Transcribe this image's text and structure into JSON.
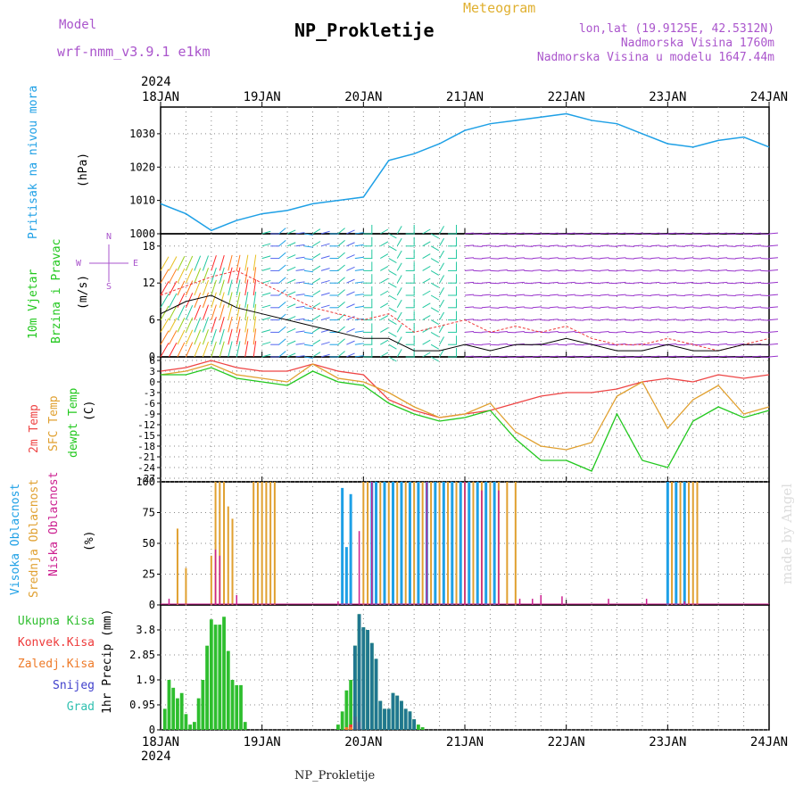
{
  "header": {
    "model_label": "Model",
    "model_name": "wrf-nmm_v3.9.1 e1km",
    "product": "Meteogram",
    "title": "NP_Prokletije",
    "location": "lon,lat (19.9125E, 42.5312N)",
    "elevation": "Nadmorska Visina 1760m",
    "model_elevation": "Nadmorska Visina u modelu 1647.44m",
    "year_top": "2024",
    "year_bottom": "2024",
    "footer": "NP_Prokletije",
    "credit": "made by Angel"
  },
  "colors": {
    "pressure": "#1ea0e6",
    "temp2m": "#ee4444",
    "sfc_temp": "#e0a030",
    "dewpt": "#22c81e",
    "cloud_high": "#1ea0e6",
    "cloud_mid": "#e0a030",
    "cloud_low": "#cc2090",
    "rain_total": "#2ebe2e",
    "rain_conv": "#ee3a3a",
    "rain_frz": "#ee7a28",
    "snow": "#4040cc",
    "grad": "#30c0b0",
    "gust": "#ee3a3a",
    "model_label": "#aa55cc",
    "product_label": "#e0b030"
  },
  "chart_data": [
    {
      "type": "line",
      "panel": "pressure",
      "title": "NP_Prokletije",
      "ylabel": [
        "Pritisak na nivou mora",
        "(hPa)"
      ],
      "x_ticks": [
        "18JAN",
        "19JAN",
        "20JAN",
        "21JAN",
        "22JAN",
        "23JAN",
        "24JAN"
      ],
      "x_unit": "hours from 18JAN 00",
      "ylim": [
        1000,
        1038
      ],
      "yticks": [
        1000,
        1010,
        1020,
        1030
      ],
      "grid": true,
      "x": [
        0,
        6,
        12,
        18,
        24,
        30,
        36,
        42,
        48,
        54,
        60,
        66,
        72,
        78,
        84,
        90,
        96,
        102,
        108,
        114,
        120,
        126,
        132,
        138,
        144
      ],
      "values": [
        1009,
        1006,
        1001,
        1004,
        1006,
        1007,
        1009,
        1010,
        1011,
        1022,
        1024,
        1027,
        1031,
        1033,
        1034,
        1035,
        1036,
        1034,
        1033,
        1030,
        1027,
        1026,
        1028,
        1029,
        1026
      ]
    },
    {
      "type": "line",
      "panel": "wind",
      "ylabel": [
        "10m Vjetar",
        "Brzina i Pravac",
        "(m/s)"
      ],
      "compass": [
        "N",
        "W",
        "E",
        "S"
      ],
      "ylim": [
        0,
        20
      ],
      "yticks": [
        0,
        6,
        12,
        18
      ],
      "grid": true,
      "series": [
        {
          "role": "speed",
          "x": [
            0,
            6,
            12,
            18,
            24,
            30,
            36,
            42,
            48,
            54,
            60,
            66,
            72,
            78,
            84,
            90,
            96,
            102,
            108,
            114,
            120,
            126,
            132,
            138,
            144
          ],
          "values": [
            7,
            9,
            10,
            8,
            7,
            6,
            5,
            4,
            3,
            3,
            1,
            1,
            2,
            1,
            2,
            2,
            3,
            2,
            1,
            1,
            2,
            1,
            1,
            2,
            2
          ]
        },
        {
          "role": "gust",
          "x": [
            0,
            12,
            18,
            24,
            30,
            36,
            42,
            48,
            54,
            60,
            66,
            72,
            78,
            84,
            90,
            96,
            102,
            108,
            114,
            120,
            126,
            132,
            138,
            144
          ],
          "values": [
            10,
            13,
            14,
            12,
            10,
            8,
            7,
            6,
            7,
            4,
            5,
            6,
            4,
            5,
            4,
            5,
            3,
            2,
            2,
            3,
            2,
            1,
            2,
            3
          ]
        }
      ]
    },
    {
      "type": "line",
      "panel": "temperature",
      "ylabel": [
        "2m Temp",
        "SFC Temp",
        "dewpt Temp",
        "(C)"
      ],
      "ylim": [
        -28,
        7
      ],
      "yticks": [
        -27,
        -24,
        -21,
        -18,
        -15,
        -12,
        -9,
        -6,
        -3,
        0,
        3,
        6
      ],
      "grid": true,
      "series": [
        {
          "name": "2m Temp",
          "x": [
            0,
            6,
            12,
            18,
            24,
            30,
            36,
            42,
            48,
            54,
            60,
            66,
            72,
            78,
            84,
            90,
            96,
            102,
            108,
            114,
            120,
            126,
            132,
            138,
            144
          ],
          "values": [
            3,
            4,
            6,
            4,
            3,
            3,
            5,
            3,
            2,
            -5,
            -8,
            -10,
            -9,
            -8,
            -6,
            -4,
            -3,
            -3,
            -2,
            0,
            1,
            0,
            2,
            1,
            2
          ]
        },
        {
          "name": "SFC Temp",
          "x": [
            0,
            6,
            12,
            18,
            24,
            30,
            36,
            42,
            48,
            54,
            60,
            66,
            72,
            78,
            84,
            90,
            96,
            102,
            108,
            114,
            120,
            126,
            132,
            138,
            144
          ],
          "values": [
            2,
            3,
            5,
            2,
            1,
            0,
            5,
            1,
            0,
            -3,
            -7,
            -10,
            -9,
            -6,
            -14,
            -18,
            -19,
            -17,
            -4,
            0,
            -13,
            -5,
            -1,
            -9,
            -7
          ]
        },
        {
          "name": "dewpt Temp",
          "x": [
            0,
            6,
            12,
            18,
            24,
            30,
            36,
            42,
            48,
            54,
            60,
            66,
            72,
            78,
            84,
            90,
            96,
            102,
            108,
            114,
            120,
            126,
            132,
            138,
            144
          ],
          "values": [
            2,
            2,
            4,
            1,
            0,
            -1,
            3,
            0,
            -1,
            -6,
            -9,
            -11,
            -10,
            -8,
            -16,
            -22,
            -22,
            -25,
            -9,
            -22,
            -24,
            -11,
            -7,
            -10,
            -8
          ]
        }
      ]
    },
    {
      "type": "bar",
      "panel": "clouds",
      "ylabel": [
        "Visoka Oblacnost",
        "Srednja Oblacnost",
        "Niska Oblacnost",
        "(%)"
      ],
      "ylim": [
        0,
        100
      ],
      "yticks": [
        0,
        25,
        50,
        75,
        100
      ],
      "grid": true,
      "series": [
        {
          "name": "Visoka Oblacnost",
          "x": [
            43,
            44,
            45,
            50,
            51,
            53,
            55,
            57,
            59,
            61,
            63,
            65,
            67,
            69,
            71,
            73,
            75,
            77,
            79,
            120,
            122,
            124
          ],
          "values": [
            95,
            47,
            90,
            100,
            100,
            100,
            100,
            100,
            100,
            100,
            100,
            100,
            100,
            100,
            100,
            100,
            100,
            100,
            100,
            100,
            100,
            100
          ]
        },
        {
          "name": "Srednja Oblacnost",
          "x": [
            4,
            6,
            12,
            13,
            14,
            15,
            16,
            17,
            22,
            23,
            24,
            25,
            26,
            27,
            48,
            49,
            52,
            54,
            56,
            58,
            60,
            62,
            64,
            66,
            68,
            70,
            72,
            74,
            76,
            78,
            80,
            82,
            84,
            121,
            123,
            125,
            126,
            127
          ],
          "values": [
            62,
            30,
            40,
            100,
            100,
            100,
            80,
            70,
            100,
            100,
            100,
            100,
            100,
            100,
            100,
            100,
            100,
            100,
            100,
            100,
            100,
            100,
            100,
            100,
            100,
            100,
            100,
            100,
            100,
            100,
            100,
            100,
            100,
            100,
            100,
            100,
            100,
            100
          ]
        },
        {
          "name": "Niska Oblacnost",
          "x": [
            2,
            13,
            14,
            18,
            42,
            47,
            50,
            63,
            72,
            76,
            80,
            85,
            88,
            90,
            95,
            106,
            115,
            124
          ],
          "values": [
            5,
            45,
            40,
            8,
            3,
            60,
            100,
            100,
            100,
            93,
            93,
            5,
            5,
            8,
            7,
            5,
            5,
            3
          ]
        }
      ]
    },
    {
      "type": "bar",
      "panel": "precipitation",
      "legend": [
        "Ukupna Kisa",
        "Konvek.Kisa",
        "Zaledj.Kisa",
        "Snijeg",
        "Grad"
      ],
      "ylabel": [
        "1hr Precip (mm)"
      ],
      "ylim": [
        0,
        4.75
      ],
      "yticks": [
        0,
        0.95,
        1.9,
        2.85,
        3.8
      ],
      "grid": true,
      "series": [
        {
          "name": "Ukupna Kisa",
          "x": [
            1,
            2,
            3,
            4,
            5,
            6,
            7,
            8,
            9,
            10,
            11,
            12,
            13,
            14,
            15,
            16,
            17,
            18,
            19,
            20,
            42,
            43,
            44,
            45,
            46,
            47,
            48,
            49,
            50,
            51,
            52,
            53,
            54,
            55,
            56,
            57,
            58,
            59,
            60,
            61,
            62
          ],
          "values": [
            0.8,
            1.9,
            1.6,
            1.2,
            1.4,
            0.6,
            0.2,
            0.3,
            1.2,
            1.9,
            3.2,
            4.2,
            4.0,
            4.0,
            4.3,
            3.0,
            1.9,
            1.7,
            1.7,
            0.3,
            0.2,
            0.7,
            1.5,
            1.9,
            3.2,
            4.4,
            3.9,
            3.8,
            3.3,
            2.7,
            1.1,
            0.8,
            0.8,
            1.4,
            1.3,
            1.1,
            0.8,
            0.7,
            0.4,
            0.2,
            0.1
          ]
        },
        {
          "name": "Konvek.Kisa",
          "x": [
            45,
            46,
            47
          ],
          "values": [
            0.2,
            0.5,
            0.3
          ]
        },
        {
          "name": "Zaledj.Kisa",
          "x": [
            44,
            45
          ],
          "values": [
            0.1,
            0.1
          ]
        },
        {
          "name": "Snijeg",
          "x": [
            46,
            47,
            48,
            49,
            50,
            51,
            52,
            53,
            54,
            55,
            56,
            57,
            58,
            59,
            60
          ],
          "values": [
            3.2,
            4.4,
            3.9,
            3.8,
            3.3,
            2.7,
            1.1,
            0.8,
            0.8,
            1.4,
            1.3,
            1.1,
            0.8,
            0.7,
            0.4
          ]
        },
        {
          "name": "Grad",
          "x": [],
          "values": []
        }
      ]
    }
  ]
}
